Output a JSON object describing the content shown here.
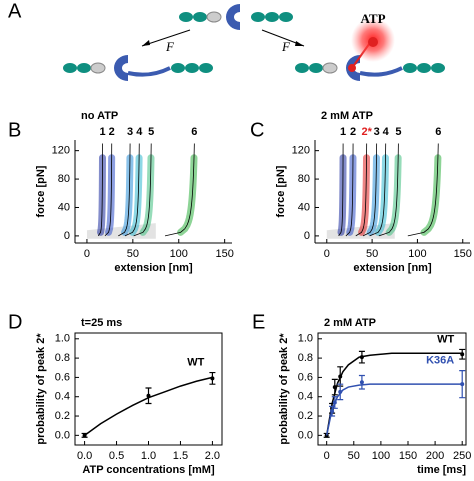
{
  "panel_a": {
    "panel_label": "A",
    "force_left": "F",
    "force_right": "F",
    "ligand": "ATP"
  },
  "chart_data": [
    {
      "type": "trace",
      "panel_label": "B",
      "title": "no ATP",
      "xlabel": "extension [nm]",
      "ylabel": "force [pN]",
      "xlim": [
        -13,
        158
      ],
      "ylim": [
        -10,
        135
      ],
      "xticks": [
        0,
        50,
        100,
        150
      ],
      "yticks": [
        0,
        40,
        80,
        120
      ],
      "peaks": [
        {
          "label": "1",
          "x": 17,
          "color": "#1f2fa0"
        },
        {
          "label": "2",
          "x": 27,
          "color": "#3050c8"
        },
        {
          "label": "3",
          "x": 47,
          "color": "#2a8fd8"
        },
        {
          "label": "4",
          "x": 57,
          "color": "#30b8d0"
        },
        {
          "label": "5",
          "x": 70,
          "color": "#40c080"
        },
        {
          "label": "6",
          "x": 117,
          "color": "#30b040"
        }
      ]
    },
    {
      "type": "trace",
      "panel_label": "C",
      "title": "2 mM ATP",
      "xlabel": "extension [nm]",
      "ylabel": "force [pN]",
      "xlim": [
        -13,
        158
      ],
      "ylim": [
        -10,
        135
      ],
      "xticks": [
        0,
        50,
        100,
        150
      ],
      "yticks": [
        0,
        40,
        80,
        120
      ],
      "peaks": [
        {
          "label": "1",
          "x": 18,
          "color": "#1f2fa0"
        },
        {
          "label": "2",
          "x": 29,
          "color": "#3050c8"
        },
        {
          "label": "2*",
          "x": 44,
          "color": "#e02020",
          "label_color": "#e02020"
        },
        {
          "label": "3",
          "x": 55,
          "color": "#2a8fd8"
        },
        {
          "label": "4",
          "x": 65,
          "color": "#30b8d0"
        },
        {
          "label": "5",
          "x": 79,
          "color": "#40c080"
        },
        {
          "label": "6",
          "x": 123,
          "color": "#30b040"
        }
      ]
    },
    {
      "type": "errorbar",
      "panel_label": "D",
      "title": "t=25 ms",
      "xlabel": "ATP concentrations [mM]",
      "ylabel": "probability of peak 2*",
      "xlim": [
        -0.15,
        2.15
      ],
      "ylim": [
        -0.1,
        1.06
      ],
      "xticks": [
        {
          "value": 0,
          "label": "0.0"
        },
        0.5,
        {
          "value": 1,
          "label": "1.0"
        },
        1.5,
        {
          "value": 2,
          "label": "2.0"
        }
      ],
      "yticks": [
        {
          "value": 0,
          "label": "0.0"
        },
        0.2,
        0.4,
        0.6,
        0.8,
        {
          "value": 1,
          "label": "1.0"
        }
      ],
      "series": [
        {
          "name": "WT",
          "color": "#000000",
          "x": [
            0,
            1,
            2
          ],
          "values": [
            0,
            0.41,
            0.59
          ],
          "errors": [
            0.02,
            0.08,
            0.06
          ],
          "fit_x": [
            0,
            0.25,
            0.5,
            0.75,
            1,
            1.25,
            1.5,
            1.75,
            2
          ],
          "fit_y": [
            0,
            0.12,
            0.22,
            0.31,
            0.39,
            0.45,
            0.51,
            0.56,
            0.6
          ]
        }
      ]
    },
    {
      "type": "errorbar",
      "panel_label": "E",
      "title": "2 mM ATP",
      "xlabel": "time [ms]",
      "ylabel": "probability of peak 2*",
      "xlim": [
        -16,
        257
      ],
      "ylim": [
        -0.1,
        1.06
      ],
      "xticks": [
        0,
        50,
        100,
        150,
        200,
        250
      ],
      "yticks": [
        {
          "value": 0,
          "label": "0.0"
        },
        0.2,
        0.4,
        0.6,
        0.8,
        {
          "value": 1,
          "label": "1.0"
        }
      ],
      "series": [
        {
          "name": "WT",
          "color": "#000000",
          "x": [
            0,
            10,
            15,
            25,
            65,
            250
          ],
          "values": [
            0,
            0.28,
            0.5,
            0.61,
            0.81,
            0.84
          ],
          "errors": [
            0.02,
            0.05,
            0.08,
            0.1,
            0.06,
            0.05
          ],
          "fit_x": [
            0,
            10,
            20,
            30,
            40,
            60,
            80,
            120,
            160,
            200,
            250
          ],
          "fit_y": [
            0,
            0.33,
            0.54,
            0.66,
            0.73,
            0.81,
            0.83,
            0.85,
            0.85,
            0.85,
            0.85
          ]
        },
        {
          "name": "K36A",
          "color": "#3050b0",
          "x": [
            10,
            15,
            25,
            65,
            250
          ],
          "values": [
            0.25,
            0.34,
            0.45,
            0.55,
            0.53
          ],
          "errors": [
            0.05,
            0.06,
            0.08,
            0.07,
            0.14
          ],
          "fit_x": [
            0,
            10,
            20,
            30,
            40,
            60,
            80,
            120,
            160,
            200,
            250
          ],
          "fit_y": [
            0,
            0.27,
            0.4,
            0.47,
            0.5,
            0.52,
            0.53,
            0.53,
            0.53,
            0.53,
            0.53
          ]
        }
      ]
    }
  ]
}
